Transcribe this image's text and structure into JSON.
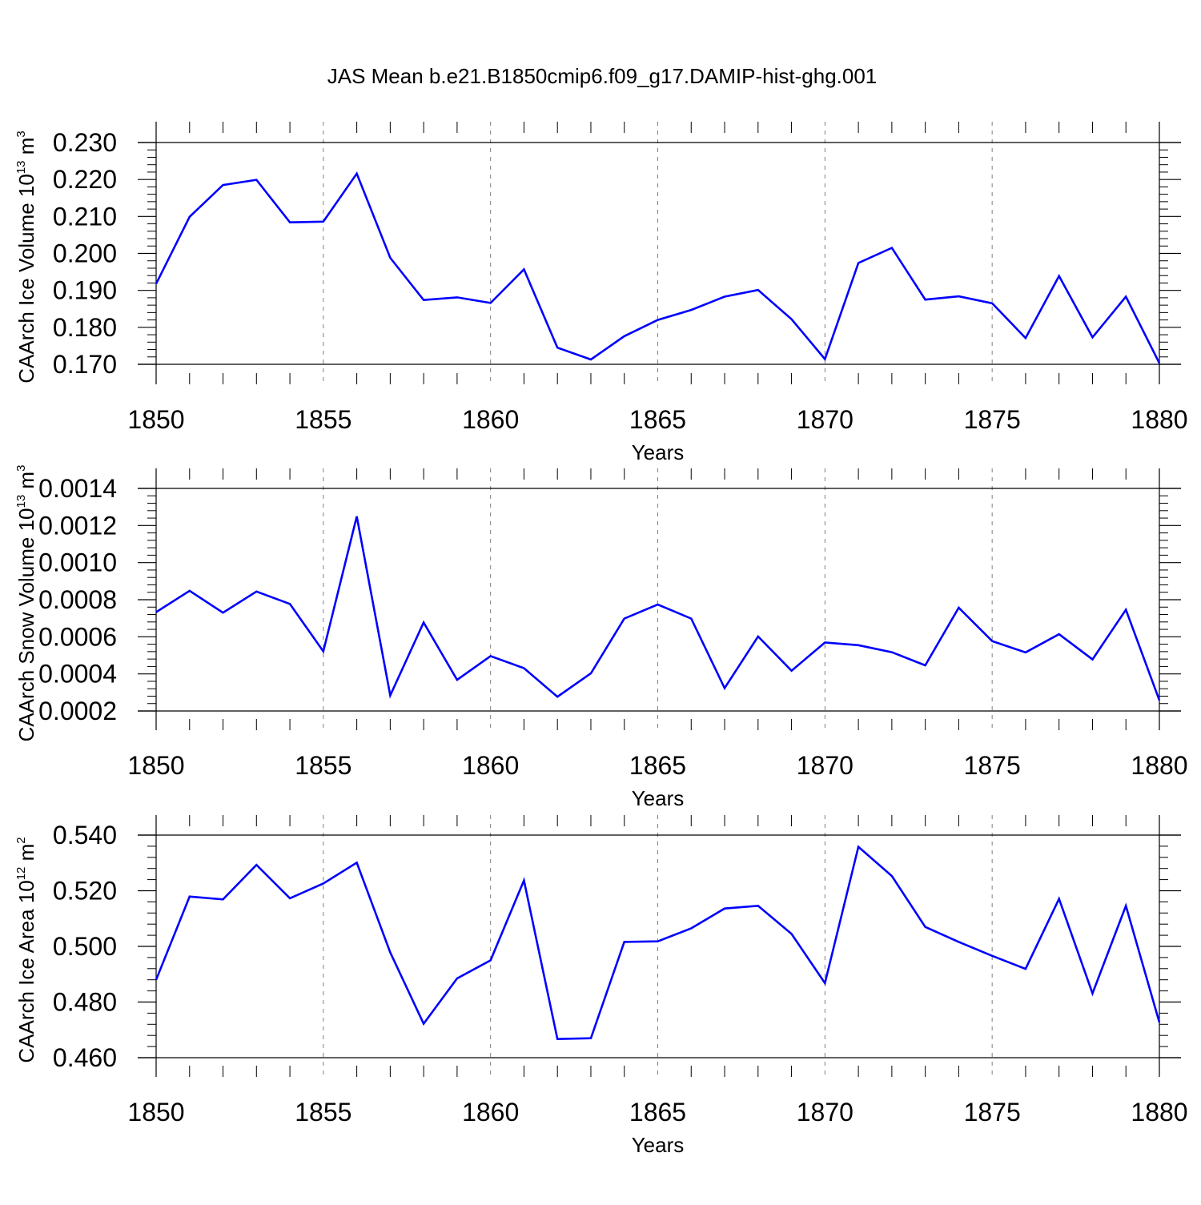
{
  "title": "JAS Mean b.e21.B1850cmip6.f09_g17.DAMIP-hist-ghg.001",
  "chart_data": [
    {
      "type": "line",
      "ylabel": {
        "pre": "CAArch Ice Volume 10",
        "exp": "13",
        "mid": " m",
        "unitexp": "3"
      },
      "xlabel": "Years",
      "xlim": [
        1850,
        1880
      ],
      "ylim": [
        0.17,
        0.23
      ],
      "xticks": [
        1850,
        1855,
        1860,
        1865,
        1870,
        1875,
        1880
      ],
      "yticks": [
        "0.170",
        "0.180",
        "0.190",
        "0.200",
        "0.210",
        "0.220",
        "0.230"
      ],
      "ytick_values": [
        0.17,
        0.18,
        0.19,
        0.2,
        0.21,
        0.22,
        0.23
      ],
      "grid_x": "dashed",
      "line_color": "#0000ff",
      "series": [
        {
          "x": [
            1850,
            1851,
            1852,
            1853,
            1854,
            1855,
            1856,
            1857,
            1858,
            1859,
            1860,
            1861,
            1862,
            1863,
            1864,
            1865,
            1866,
            1867,
            1868,
            1869,
            1870,
            1871,
            1872,
            1873,
            1874,
            1875,
            1876,
            1877,
            1878,
            1879,
            1880
          ],
          "values": [
            0.1918,
            0.2099,
            0.2185,
            0.2199,
            0.2084,
            0.2086,
            0.2216,
            0.1988,
            0.1874,
            0.1881,
            0.1866,
            0.1957,
            0.1745,
            0.1713,
            0.1776,
            0.182,
            0.1847,
            0.1883,
            0.1901,
            0.1822,
            0.1714,
            0.1974,
            0.2015,
            0.1875,
            0.1884,
            0.1865,
            0.1771,
            0.1939,
            0.1773,
            0.1883,
            0.1703
          ]
        }
      ]
    },
    {
      "type": "line",
      "ylabel": {
        "pre": "CAArch Snow Volume 10",
        "exp": "13",
        "mid": " m",
        "unitexp": "3"
      },
      "xlabel": "Years",
      "xlim": [
        1850,
        1880
      ],
      "ylim": [
        0.0002,
        0.0014
      ],
      "xticks": [
        1850,
        1855,
        1860,
        1865,
        1870,
        1875,
        1880
      ],
      "yticks": [
        "0.0002",
        "0.0004",
        "0.0006",
        "0.0008",
        "0.0010",
        "0.0012",
        "0.0014"
      ],
      "ytick_values": [
        0.0002,
        0.0004,
        0.0006,
        0.0008,
        0.001,
        0.0012,
        0.0014
      ],
      "grid_x": "dashed",
      "line_color": "#0000ff",
      "series": [
        {
          "x": [
            1850,
            1851,
            1852,
            1853,
            1854,
            1855,
            1856,
            1857,
            1858,
            1859,
            1860,
            1861,
            1862,
            1863,
            1864,
            1865,
            1866,
            1867,
            1868,
            1869,
            1870,
            1871,
            1872,
            1873,
            1874,
            1875,
            1876,
            1877,
            1878,
            1879,
            1880
          ],
          "values": [
            0.000733,
            0.000848,
            0.00073,
            0.000844,
            0.000777,
            0.000521,
            0.001249,
            0.000284,
            0.000677,
            0.000368,
            0.000496,
            0.000431,
            0.000277,
            0.000403,
            0.000698,
            0.000774,
            0.000698,
            0.000323,
            0.000602,
            0.000417,
            0.000569,
            0.000555,
            0.000517,
            0.000446,
            0.000757,
            0.000577,
            0.000516,
            0.000614,
            0.000478,
            0.000746,
            0.000258
          ]
        }
      ]
    },
    {
      "type": "line",
      "ylabel": {
        "pre": "CAArch Ice Area 10",
        "exp": "12",
        "mid": " m",
        "unitexp": "2"
      },
      "xlabel": "Years",
      "xlim": [
        1850,
        1880
      ],
      "ylim": [
        0.46,
        0.54
      ],
      "xticks": [
        1850,
        1855,
        1860,
        1865,
        1870,
        1875,
        1880
      ],
      "yticks": [
        "0.460",
        "0.480",
        "0.500",
        "0.520",
        "0.540"
      ],
      "ytick_values": [
        0.46,
        0.48,
        0.5,
        0.52,
        0.54
      ],
      "grid_x": "dashed",
      "line_color": "#0000ff",
      "series": [
        {
          "x": [
            1850,
            1851,
            1852,
            1853,
            1854,
            1855,
            1856,
            1857,
            1858,
            1859,
            1860,
            1861,
            1862,
            1863,
            1864,
            1865,
            1866,
            1867,
            1868,
            1869,
            1870,
            1871,
            1872,
            1873,
            1874,
            1875,
            1876,
            1877,
            1878,
            1879,
            1880
          ],
          "values": [
            0.488,
            0.5179,
            0.5169,
            0.5293,
            0.5173,
            0.5226,
            0.5301,
            0.4978,
            0.4722,
            0.4885,
            0.495,
            0.5237,
            0.4667,
            0.467,
            0.5016,
            0.5018,
            0.5065,
            0.5136,
            0.5146,
            0.5045,
            0.4868,
            0.5358,
            0.5253,
            0.507,
            0.5016,
            0.4966,
            0.4919,
            0.5171,
            0.4831,
            0.5146,
            0.4727
          ]
        }
      ]
    }
  ]
}
